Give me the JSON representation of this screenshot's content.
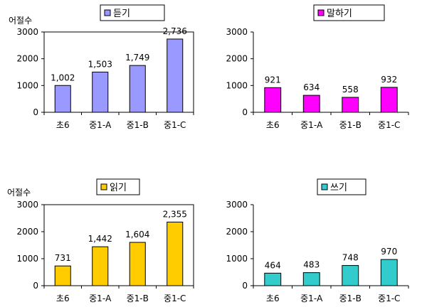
{
  "chart_data": [
    {
      "type": "bar",
      "legend": "듣기",
      "ylabel": "어절수",
      "categories": [
        "초6",
        "중1-A",
        "중1-B",
        "중1-C"
      ],
      "values": [
        1002,
        1503,
        1749,
        2736
      ],
      "value_labels": [
        "1,002",
        "1,503",
        "1,749",
        "2,736"
      ],
      "yticks": [
        "0",
        "1000",
        "2000",
        "3000"
      ],
      "ylim": [
        0,
        3000
      ],
      "color": "#9999ff",
      "plot_border": true,
      "grid": false,
      "legend_position": "top"
    },
    {
      "type": "bar",
      "legend": "말하기",
      "ylabel": "",
      "categories": [
        "초6",
        "중1-A",
        "중1-B",
        "중1-C"
      ],
      "values": [
        921,
        634,
        558,
        932
      ],
      "value_labels": [
        "921",
        "634",
        "558",
        "932"
      ],
      "yticks": [
        "0",
        "1000",
        "2000",
        "3000"
      ],
      "ylim": [
        0,
        3000
      ],
      "color": "#ff00ff",
      "plot_border": false,
      "grid": false,
      "legend_position": "top"
    },
    {
      "type": "bar",
      "legend": "읽기",
      "ylabel": "어절수",
      "categories": [
        "초6",
        "중1-A",
        "중1-B",
        "중1-C"
      ],
      "values": [
        731,
        1442,
        1604,
        2355
      ],
      "value_labels": [
        "731",
        "1,442",
        "1,604",
        "2,355"
      ],
      "yticks": [
        "0",
        "1000",
        "2000",
        "3000"
      ],
      "ylim": [
        0,
        3000
      ],
      "color": "#ffcc00",
      "plot_border": true,
      "grid": false,
      "legend_position": "top"
    },
    {
      "type": "bar",
      "legend": "쓰기",
      "ylabel": "",
      "categories": [
        "초6",
        "중1-A",
        "중1-B",
        "중1-C"
      ],
      "values": [
        464,
        483,
        748,
        970
      ],
      "value_labels": [
        "464",
        "483",
        "748",
        "970"
      ],
      "yticks": [
        "0",
        "1000",
        "2000",
        "3000"
      ],
      "ylim": [
        0,
        3000
      ],
      "color": "#33cccc",
      "plot_border": false,
      "grid": false,
      "legend_position": "top"
    }
  ]
}
